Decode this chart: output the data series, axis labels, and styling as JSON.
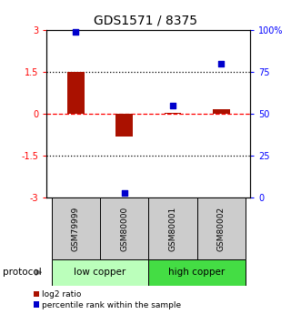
{
  "title": "GDS1571 / 8375",
  "samples": [
    "GSM79999",
    "GSM80000",
    "GSM80001",
    "GSM80002"
  ],
  "log2_ratio": [
    1.5,
    -0.8,
    0.05,
    0.15
  ],
  "percentile_rank": [
    99,
    3,
    55,
    80
  ],
  "ylim_left": [
    -3,
    3
  ],
  "ylim_right": [
    0,
    100
  ],
  "yticks_left": [
    -3,
    -1.5,
    0,
    1.5,
    3
  ],
  "yticks_right": [
    0,
    25,
    50,
    75,
    100
  ],
  "ytick_labels_left": [
    "-3",
    "-1.5",
    "0",
    "1.5",
    "3"
  ],
  "ytick_labels_right": [
    "0",
    "25",
    "50",
    "75",
    "100%"
  ],
  "bar_color": "#aa1100",
  "scatter_color": "#0000cc",
  "group_labels": [
    "low copper",
    "high copper"
  ],
  "group_ranges": [
    [
      0,
      2
    ],
    [
      2,
      4
    ]
  ],
  "group_color_light": "#bbffbb",
  "group_color_dark": "#44dd44",
  "sample_box_color": "#cccccc",
  "protocol_label": "protocol",
  "legend_bar_label": "log2 ratio",
  "legend_scatter_label": "percentile rank within the sample",
  "bar_width": 0.35,
  "figsize": [
    3.2,
    3.45
  ],
  "dpi": 100
}
